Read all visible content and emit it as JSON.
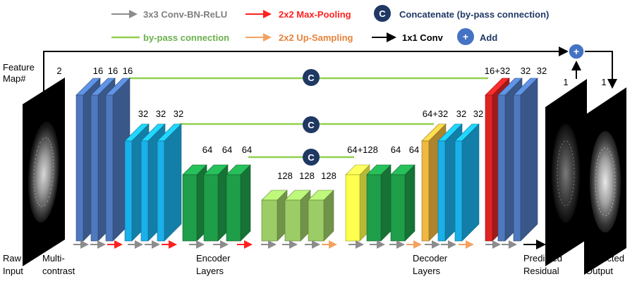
{
  "legend": {
    "conv": "3x3 Conv-BN-ReLU",
    "maxpool": "2x2 Max-Pooling",
    "concat_symbol": "C",
    "concat": "Concatenate (by-pass connection)",
    "bypass": "by-pass connection",
    "upsample": "2x2 Up-Sampling",
    "conv1x1": "1x1 Conv",
    "add_symbol": "+",
    "add": "Add"
  },
  "colors": {
    "conv_arrow": "#8c8c8c",
    "maxpool_arrow": "#ff2020",
    "bypass_line": "#92d050",
    "upsample_arrow": "#f4a261",
    "concat_circle": "#1f3864",
    "add_circle": "#4472c4",
    "legend_dark": "#1f3864",
    "legend_green": "#6ab04c",
    "legend_orange": "#e6833a"
  },
  "labels": {
    "feature_line1": "Feature",
    "feature_line2": "Map#",
    "raw_line1": "Raw",
    "raw_line2": "Input",
    "multi_line1": "Multi-",
    "multi_line2": "contrast",
    "encoder_line1": "Encoder",
    "encoder_line2": "Layers",
    "decoder_line1": "Decoder",
    "decoder_line2": "Layers",
    "pres_line1": "Predicted",
    "pres_line2": "Residual",
    "pout_line1": "Predicted",
    "pout_line2": "Output"
  },
  "counts": {
    "input": "2",
    "enc1": [
      "16",
      "16",
      "16"
    ],
    "enc2": [
      "32",
      "32",
      "32"
    ],
    "enc3": [
      "64",
      "64",
      "64"
    ],
    "bottleneck": [
      "128",
      "128",
      "128"
    ],
    "dec3": [
      "64+128",
      "64",
      "64"
    ],
    "dec2": [
      "64+32",
      "32",
      "32"
    ],
    "dec1": [
      "16+32",
      "32",
      "32"
    ],
    "residual": "1",
    "output": "1"
  }
}
